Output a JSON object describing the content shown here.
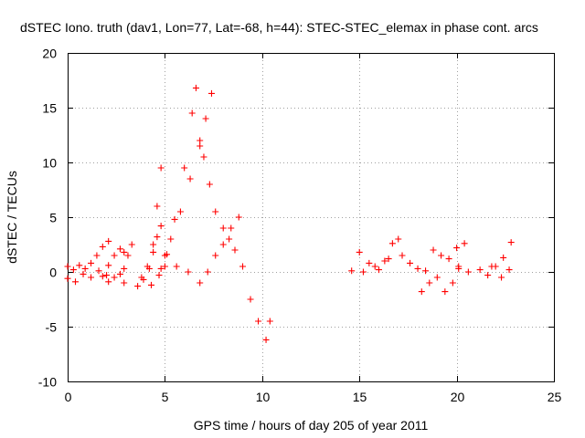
{
  "chart_data": {
    "type": "scatter",
    "title": "dSTEC Iono. truth (dav1, Lon=77, Lat=-68, h=44): STEC-STEC_elemax in phase cont. arcs",
    "xlabel": "GPS time / hours of day 205 of year 2011",
    "ylabel": "dSTEC  / TECUs",
    "xlim": [
      0,
      25
    ],
    "ylim": [
      -10,
      20
    ],
    "xticks": [
      0,
      5,
      10,
      15,
      20,
      25
    ],
    "yticks": [
      -10,
      -5,
      0,
      5,
      10,
      15,
      20
    ],
    "grid": true,
    "legend": "none",
    "marker": "plus",
    "color": "#ff0000",
    "arcs": [
      {
        "x": [
          0.0,
          0.3,
          0.6,
          0.9,
          1.2,
          1.5,
          1.8,
          2.1
        ],
        "y": [
          0.5,
          0.2,
          0.6,
          0.3,
          0.8,
          1.5,
          2.3,
          2.8
        ]
      },
      {
        "x": [
          0.0,
          0.4,
          0.8,
          1.2,
          1.6,
          2.0
        ],
        "y": [
          -0.6,
          -0.9,
          -0.2,
          -0.5,
          0.1,
          -0.3
        ]
      },
      {
        "x": [
          1.8,
          2.1,
          2.4,
          2.7,
          2.9
        ],
        "y": [
          -0.4,
          0.6,
          1.5,
          2.1,
          1.8
        ]
      },
      {
        "x": [
          2.1,
          2.4,
          2.7,
          2.9
        ],
        "y": [
          -0.9,
          -0.5,
          -0.2,
          -1.0
        ]
      },
      {
        "x": [
          2.9,
          3.1,
          3.3
        ],
        "y": [
          0.3,
          1.5,
          2.5
        ]
      },
      {
        "x": [
          3.6,
          3.9,
          4.2,
          4.4,
          4.6,
          4.8
        ],
        "y": [
          -1.3,
          -0.7,
          0.3,
          2.5,
          6.0,
          9.5
        ]
      },
      {
        "x": [
          3.8,
          4.1,
          4.4,
          4.6,
          4.8
        ],
        "y": [
          -0.5,
          0.5,
          1.8,
          3.2,
          4.2
        ]
      },
      {
        "x": [
          4.3,
          4.7,
          5.1,
          5.5,
          6.0,
          6.4,
          6.6
        ],
        "y": [
          -1.2,
          -0.3,
          1.6,
          4.8,
          9.5,
          14.5,
          16.8
        ]
      },
      {
        "x": [
          4.8,
          5.0,
          5.3,
          5.8,
          6.3,
          6.8,
          7.1,
          7.4
        ],
        "y": [
          0.3,
          1.5,
          3.0,
          5.5,
          8.5,
          11.5,
          14.0,
          16.3
        ]
      },
      {
        "x": [
          5.0,
          5.6,
          6.2,
          6.8,
          7.2,
          7.6,
          8.0,
          8.4,
          8.8
        ],
        "y": [
          0.5,
          0.5,
          0.0,
          -1.0,
          0.0,
          1.5,
          2.5,
          4.0,
          5.0
        ]
      },
      {
        "x": [
          6.8,
          7.0,
          7.3,
          7.6,
          8.0,
          8.3,
          8.6,
          9.0,
          9.4,
          9.8,
          10.2,
          10.4
        ],
        "y": [
          12.0,
          10.5,
          8.0,
          5.5,
          4.0,
          3.0,
          2.0,
          0.5,
          -2.5,
          -4.5,
          -6.2,
          -4.5
        ]
      },
      {
        "x": [
          14.6,
          15.2,
          15.8,
          16.3,
          16.7,
          17.2,
          17.6,
          18.0,
          18.4
        ],
        "y": [
          0.1,
          0.0,
          0.5,
          1.0,
          2.6,
          1.5,
          0.8,
          0.3,
          0.1
        ]
      },
      {
        "x": [
          15.0,
          15.5,
          16.0,
          16.5,
          17.0
        ],
        "y": [
          1.8,
          0.8,
          0.2,
          1.2,
          3.0
        ]
      },
      {
        "x": [
          18.2,
          18.6,
          19.0,
          19.4,
          19.8,
          20.1
        ],
        "y": [
          -1.8,
          -1.0,
          -0.5,
          -1.8,
          -1.0,
          0.5
        ]
      },
      {
        "x": [
          18.8,
          19.2,
          19.6,
          20.0,
          20.4
        ],
        "y": [
          2.0,
          1.5,
          1.2,
          2.2,
          2.6
        ]
      },
      {
        "x": [
          20.1,
          20.6,
          21.2,
          21.8,
          22.3,
          22.7
        ],
        "y": [
          0.3,
          0.0,
          0.2,
          0.5,
          -0.5,
          0.2
        ]
      },
      {
        "x": [
          21.6,
          22.0,
          22.4,
          22.8
        ],
        "y": [
          -0.3,
          0.5,
          1.3,
          2.7
        ]
      }
    ]
  }
}
